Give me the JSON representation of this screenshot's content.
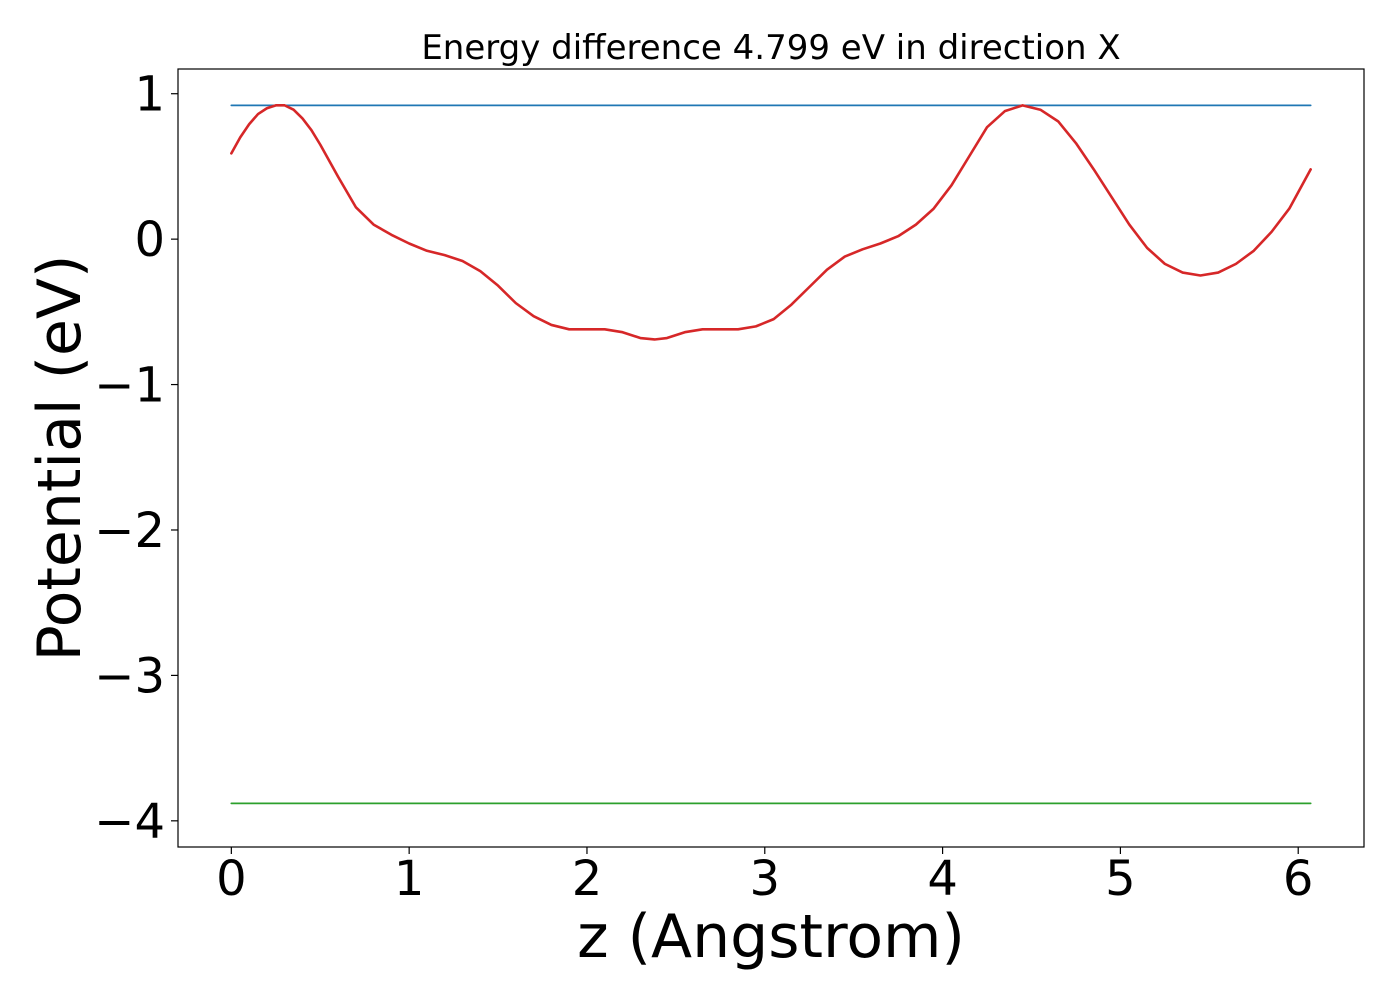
{
  "chart_data": {
    "type": "line",
    "title": "Energy difference 4.799 eV in direction X",
    "xlabel": "z (Angstrom)",
    "ylabel": "Potential (eV)",
    "xlim": [
      -0.3,
      6.37
    ],
    "ylim": [
      -4.18,
      1.17
    ],
    "xticks": [
      0,
      1,
      2,
      3,
      4,
      5,
      6
    ],
    "xtick_labels": [
      "0",
      "1",
      "2",
      "3",
      "4",
      "5",
      "6"
    ],
    "yticks": [
      1,
      0,
      -1,
      -2,
      -3,
      -4
    ],
    "ytick_labels": [
      "1",
      "0",
      "−1",
      "−2",
      "−3",
      "−4"
    ],
    "grid": false,
    "series": [
      {
        "color": "#1f77b4",
        "x": [
          0,
          6.07
        ],
        "y": [
          0.92,
          0.92
        ]
      },
      {
        "color": "#2ca02c",
        "x": [
          0,
          6.07
        ],
        "y": [
          -3.88,
          -3.88
        ]
      },
      {
        "color": "#d62728",
        "x": [
          0.0,
          0.05,
          0.1,
          0.15,
          0.2,
          0.25,
          0.3,
          0.35,
          0.4,
          0.45,
          0.5,
          0.6,
          0.7,
          0.8,
          0.9,
          1.0,
          1.1,
          1.2,
          1.3,
          1.4,
          1.5,
          1.6,
          1.7,
          1.8,
          1.9,
          2.0,
          2.1,
          2.2,
          2.3,
          2.38,
          2.45,
          2.55,
          2.65,
          2.75,
          2.85,
          2.95,
          3.05,
          3.15,
          3.25,
          3.35,
          3.45,
          3.55,
          3.65,
          3.75,
          3.85,
          3.95,
          4.05,
          4.15,
          4.25,
          4.35,
          4.45,
          4.55,
          4.65,
          4.75,
          4.85,
          4.95,
          5.05,
          5.15,
          5.25,
          5.35,
          5.45,
          5.55,
          5.65,
          5.75,
          5.85,
          5.95,
          6.07
        ],
        "y": [
          0.59,
          0.7,
          0.79,
          0.86,
          0.9,
          0.92,
          0.92,
          0.89,
          0.83,
          0.75,
          0.65,
          0.43,
          0.22,
          0.1,
          0.03,
          -0.03,
          -0.08,
          -0.11,
          -0.15,
          -0.22,
          -0.32,
          -0.44,
          -0.53,
          -0.59,
          -0.62,
          -0.62,
          -0.62,
          -0.64,
          -0.68,
          -0.69,
          -0.68,
          -0.64,
          -0.62,
          -0.62,
          -0.62,
          -0.6,
          -0.55,
          -0.45,
          -0.33,
          -0.21,
          -0.12,
          -0.07,
          -0.03,
          0.02,
          0.1,
          0.21,
          0.37,
          0.57,
          0.77,
          0.88,
          0.92,
          0.89,
          0.81,
          0.66,
          0.48,
          0.29,
          0.1,
          -0.06,
          -0.17,
          -0.23,
          -0.25,
          -0.23,
          -0.17,
          -0.08,
          0.05,
          0.21,
          0.48
        ]
      }
    ]
  }
}
